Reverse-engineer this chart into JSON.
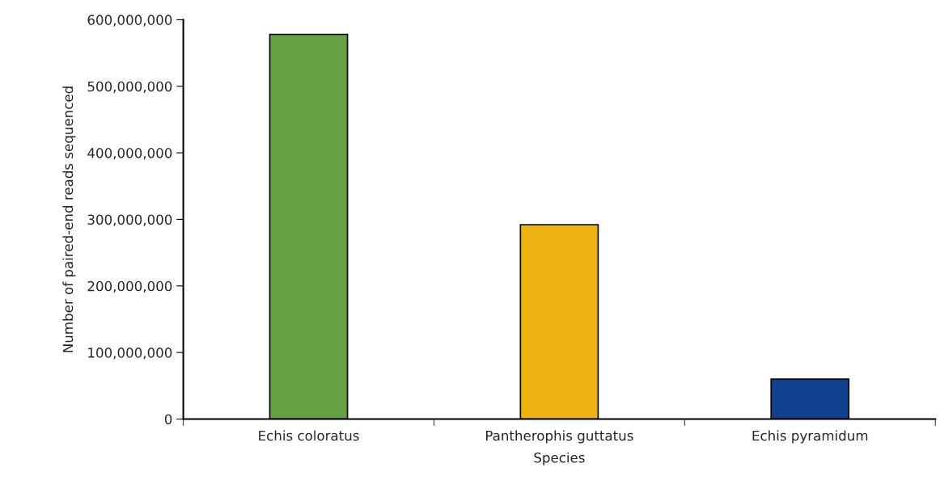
{
  "chart_data": {
    "type": "bar",
    "xlabel": "Species",
    "ylabel": "Number of paired-end reads sequenced",
    "categories": [
      "Echis coloratus",
      "Pantherophis guttatus",
      "Echis pyramidum"
    ],
    "values": [
      578000000,
      292000000,
      60000000
    ],
    "colors": [
      "#65a042",
      "#eeb211",
      "#133f8f"
    ],
    "ylim": [
      0,
      600000000
    ],
    "yticks": [
      {
        "value": 0,
        "label": "0"
      },
      {
        "value": 100000000,
        "label": "100,000,000"
      },
      {
        "value": 200000000,
        "label": "200,000,000"
      },
      {
        "value": 300000000,
        "label": "300,000,000"
      },
      {
        "value": 400000000,
        "label": "400,000,000"
      },
      {
        "value": 500000000,
        "label": "500,000,000"
      },
      {
        "value": 600000000,
        "label": "600,000,000"
      }
    ],
    "grid": false,
    "legend": false
  }
}
